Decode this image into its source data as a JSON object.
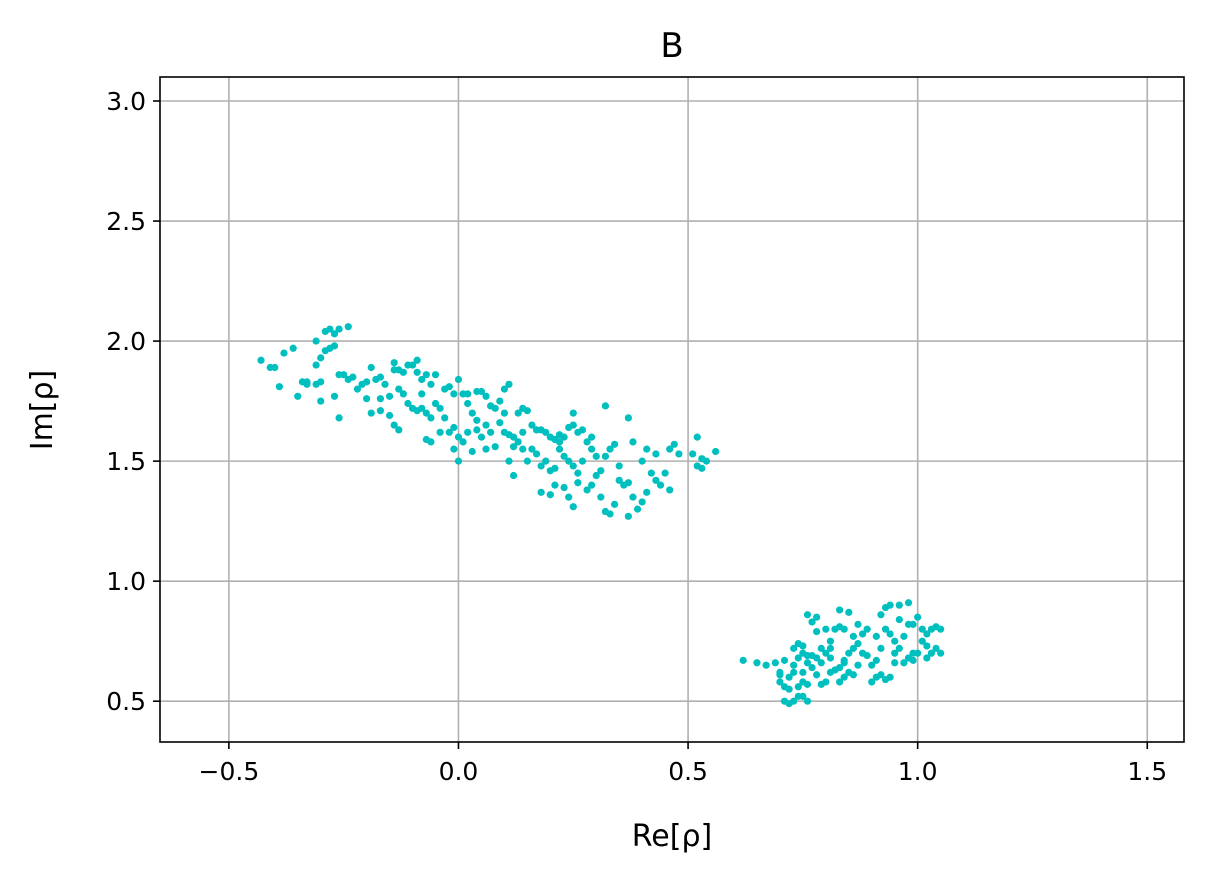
{
  "chart_data": {
    "type": "scatter",
    "title": "B",
    "xlabel": "Re[ρ]",
    "ylabel": "Im[ρ]",
    "xlim": [
      -0.65,
      1.58
    ],
    "ylim": [
      0.33,
      3.1
    ],
    "xticks": [
      -0.5,
      0.0,
      0.5,
      1.0,
      1.5
    ],
    "xtick_labels": [
      "−0.5",
      "0.0",
      "0.5",
      "1.0",
      "1.5"
    ],
    "yticks": [
      0.5,
      1.0,
      1.5,
      2.0,
      2.5,
      3.0
    ],
    "ytick_labels": [
      "0.5",
      "1.0",
      "1.5",
      "2.0",
      "2.5",
      "3.0"
    ],
    "grid": true,
    "marker_color": "#00bfbf",
    "series": [
      {
        "points": [
          [
            -0.43,
            1.92
          ],
          [
            -0.41,
            1.89
          ],
          [
            -0.4,
            1.89
          ],
          [
            -0.38,
            1.95
          ],
          [
            -0.36,
            1.97
          ],
          [
            -0.39,
            1.81
          ],
          [
            -0.35,
            1.77
          ],
          [
            -0.33,
            1.83
          ],
          [
            -0.33,
            1.82
          ],
          [
            -0.31,
            1.82
          ],
          [
            -0.3,
            1.83
          ],
          [
            -0.31,
            1.9
          ],
          [
            -0.3,
            1.93
          ],
          [
            -0.29,
            1.96
          ],
          [
            -0.28,
            1.97
          ],
          [
            -0.27,
            1.98
          ],
          [
            -0.31,
            2.0
          ],
          [
            -0.29,
            2.04
          ],
          [
            -0.28,
            2.05
          ],
          [
            -0.26,
            2.05
          ],
          [
            -0.24,
            2.06
          ],
          [
            -0.27,
            2.03
          ],
          [
            -0.3,
            1.75
          ],
          [
            -0.27,
            1.77
          ],
          [
            -0.26,
            1.68
          ],
          [
            -0.25,
            1.86
          ],
          [
            -0.24,
            1.84
          ],
          [
            -0.23,
            1.85
          ],
          [
            -0.22,
            1.8
          ],
          [
            -0.21,
            1.82
          ],
          [
            -0.2,
            1.83
          ],
          [
            -0.19,
            1.89
          ],
          [
            -0.18,
            1.84
          ],
          [
            -0.17,
            1.85
          ],
          [
            -0.17,
            1.76
          ],
          [
            -0.16,
            1.82
          ],
          [
            -0.15,
            1.77
          ],
          [
            -0.14,
            1.91
          ],
          [
            -0.14,
            1.88
          ],
          [
            -0.13,
            1.88
          ],
          [
            -0.12,
            1.87
          ],
          [
            -0.11,
            1.9
          ],
          [
            -0.1,
            1.9
          ],
          [
            -0.09,
            1.92
          ],
          [
            -0.09,
            1.87
          ],
          [
            -0.08,
            1.84
          ],
          [
            -0.07,
            1.86
          ],
          [
            -0.06,
            1.82
          ],
          [
            -0.13,
            1.8
          ],
          [
            -0.12,
            1.78
          ],
          [
            -0.11,
            1.74
          ],
          [
            -0.1,
            1.72
          ],
          [
            -0.09,
            1.71
          ],
          [
            -0.08,
            1.72
          ],
          [
            -0.07,
            1.7
          ],
          [
            -0.06,
            1.68
          ],
          [
            -0.05,
            1.74
          ],
          [
            -0.04,
            1.72
          ],
          [
            -0.03,
            1.8
          ],
          [
            -0.02,
            1.81
          ],
          [
            -0.01,
            1.78
          ],
          [
            -0.03,
            1.68
          ],
          [
            -0.02,
            1.62
          ],
          [
            -0.01,
            1.64
          ],
          [
            0.0,
            1.6
          ],
          [
            0.01,
            1.58
          ],
          [
            0.02,
            1.62
          ],
          [
            -0.01,
            1.55
          ],
          [
            0.0,
            1.5
          ],
          [
            -0.06,
            1.58
          ],
          [
            -0.07,
            1.59
          ],
          [
            -0.04,
            1.62
          ],
          [
            -0.14,
            1.65
          ],
          [
            -0.13,
            1.63
          ],
          [
            -0.15,
            1.69
          ],
          [
            -0.19,
            1.7
          ],
          [
            -0.17,
            1.71
          ],
          [
            0.0,
            1.84
          ],
          [
            0.01,
            1.78
          ],
          [
            0.02,
            1.74
          ],
          [
            0.03,
            1.7
          ],
          [
            0.04,
            1.79
          ],
          [
            0.05,
            1.79
          ],
          [
            0.06,
            1.77
          ],
          [
            0.04,
            1.67
          ],
          [
            0.05,
            1.6
          ],
          [
            0.06,
            1.65
          ],
          [
            0.07,
            1.62
          ],
          [
            0.07,
            1.73
          ],
          [
            0.08,
            1.72
          ],
          [
            0.09,
            1.75
          ],
          [
            0.1,
            1.8
          ],
          [
            0.11,
            1.82
          ],
          [
            0.1,
            1.7
          ],
          [
            0.09,
            1.66
          ],
          [
            0.1,
            1.62
          ],
          [
            0.11,
            1.61
          ],
          [
            0.12,
            1.6
          ],
          [
            0.13,
            1.7
          ],
          [
            0.14,
            1.72
          ],
          [
            0.15,
            1.71
          ],
          [
            0.16,
            1.65
          ],
          [
            0.12,
            1.56
          ],
          [
            0.13,
            1.58
          ],
          [
            0.14,
            1.55
          ],
          [
            0.15,
            1.5
          ],
          [
            0.11,
            1.5
          ],
          [
            0.12,
            1.44
          ],
          [
            0.08,
            1.56
          ],
          [
            0.06,
            1.55
          ],
          [
            0.03,
            1.54
          ],
          [
            0.17,
            1.63
          ],
          [
            0.18,
            1.63
          ],
          [
            0.19,
            1.62
          ],
          [
            0.2,
            1.6
          ],
          [
            0.21,
            1.59
          ],
          [
            0.22,
            1.61
          ],
          [
            0.23,
            1.6
          ],
          [
            0.24,
            1.64
          ],
          [
            0.25,
            1.7
          ],
          [
            0.25,
            1.65
          ],
          [
            0.26,
            1.62
          ],
          [
            0.27,
            1.63
          ],
          [
            0.28,
            1.58
          ],
          [
            0.29,
            1.6
          ],
          [
            0.17,
            1.53
          ],
          [
            0.18,
            1.48
          ],
          [
            0.19,
            1.5
          ],
          [
            0.2,
            1.46
          ],
          [
            0.21,
            1.47
          ],
          [
            0.22,
            1.55
          ],
          [
            0.23,
            1.52
          ],
          [
            0.24,
            1.5
          ],
          [
            0.25,
            1.48
          ],
          [
            0.26,
            1.45
          ],
          [
            0.18,
            1.37
          ],
          [
            0.2,
            1.36
          ],
          [
            0.21,
            1.4
          ],
          [
            0.23,
            1.39
          ],
          [
            0.24,
            1.35
          ],
          [
            0.25,
            1.31
          ],
          [
            0.26,
            1.41
          ],
          [
            0.28,
            1.38
          ],
          [
            0.29,
            1.4
          ],
          [
            0.3,
            1.44
          ],
          [
            0.31,
            1.46
          ],
          [
            0.32,
            1.52
          ],
          [
            0.33,
            1.55
          ],
          [
            0.34,
            1.57
          ],
          [
            0.32,
            1.73
          ],
          [
            0.37,
            1.68
          ],
          [
            0.31,
            1.35
          ],
          [
            0.32,
            1.29
          ],
          [
            0.33,
            1.28
          ],
          [
            0.34,
            1.32
          ],
          [
            0.35,
            1.42
          ],
          [
            0.36,
            1.4
          ],
          [
            0.37,
            1.41
          ],
          [
            0.37,
            1.27
          ],
          [
            0.38,
            1.35
          ],
          [
            0.39,
            1.3
          ],
          [
            0.4,
            1.33
          ],
          [
            0.41,
            1.37
          ],
          [
            0.42,
            1.45
          ],
          [
            0.43,
            1.42
          ],
          [
            0.44,
            1.4
          ],
          [
            0.45,
            1.45
          ],
          [
            0.4,
            1.5
          ],
          [
            0.38,
            1.58
          ],
          [
            0.41,
            1.55
          ],
          [
            0.43,
            1.53
          ],
          [
            0.46,
            1.55
          ],
          [
            0.47,
            1.57
          ],
          [
            0.48,
            1.53
          ],
          [
            0.51,
            1.53
          ],
          [
            0.52,
            1.48
          ],
          [
            0.53,
            1.47
          ],
          [
            0.53,
            1.51
          ],
          [
            0.54,
            1.5
          ],
          [
            0.56,
            1.54
          ],
          [
            0.52,
            1.6
          ],
          [
            0.46,
            1.38
          ],
          [
            0.35,
            1.48
          ],
          [
            0.3,
            1.52
          ],
          [
            0.29,
            1.55
          ],
          [
            0.27,
            1.5
          ],
          [
            0.22,
            1.58
          ],
          [
            0.16,
            1.55
          ],
          [
            0.02,
            1.78
          ],
          [
            -0.05,
            1.86
          ],
          [
            -0.08,
            1.78
          ],
          [
            -0.2,
            1.76
          ],
          [
            -0.26,
            1.86
          ],
          [
            -0.34,
            1.83
          ],
          [
            0.04,
            1.63
          ],
          [
            0.14,
            1.62
          ]
        ]
      },
      {
        "points": [
          [
            0.62,
            0.67
          ],
          [
            0.65,
            0.66
          ],
          [
            0.67,
            0.65
          ],
          [
            0.69,
            0.66
          ],
          [
            0.71,
            0.67
          ],
          [
            0.7,
            0.62
          ],
          [
            0.7,
            0.58
          ],
          [
            0.71,
            0.56
          ],
          [
            0.72,
            0.6
          ],
          [
            0.73,
            0.62
          ],
          [
            0.72,
            0.55
          ],
          [
            0.71,
            0.5
          ],
          [
            0.72,
            0.49
          ],
          [
            0.73,
            0.5
          ],
          [
            0.74,
            0.52
          ],
          [
            0.75,
            0.52
          ],
          [
            0.76,
            0.5
          ],
          [
            0.74,
            0.56
          ],
          [
            0.75,
            0.58
          ],
          [
            0.76,
            0.57
          ],
          [
            0.73,
            0.65
          ],
          [
            0.74,
            0.68
          ],
          [
            0.75,
            0.7
          ],
          [
            0.76,
            0.66
          ],
          [
            0.77,
            0.64
          ],
          [
            0.73,
            0.72
          ],
          [
            0.74,
            0.74
          ],
          [
            0.75,
            0.73
          ],
          [
            0.76,
            0.69
          ],
          [
            0.77,
            0.69
          ],
          [
            0.78,
            0.68
          ],
          [
            0.79,
            0.66
          ],
          [
            0.8,
            0.7
          ],
          [
            0.81,
            0.68
          ],
          [
            0.76,
            0.86
          ],
          [
            0.78,
            0.85
          ],
          [
            0.8,
            0.8
          ],
          [
            0.81,
            0.75
          ],
          [
            0.82,
            0.8
          ],
          [
            0.83,
            0.81
          ],
          [
            0.84,
            0.8
          ],
          [
            0.83,
            0.88
          ],
          [
            0.85,
            0.87
          ],
          [
            0.86,
            0.77
          ],
          [
            0.87,
            0.74
          ],
          [
            0.86,
            0.72
          ],
          [
            0.85,
            0.7
          ],
          [
            0.84,
            0.66
          ],
          [
            0.83,
            0.64
          ],
          [
            0.82,
            0.63
          ],
          [
            0.81,
            0.62
          ],
          [
            0.8,
            0.58
          ],
          [
            0.79,
            0.57
          ],
          [
            0.83,
            0.58
          ],
          [
            0.84,
            0.6
          ],
          [
            0.85,
            0.62
          ],
          [
            0.86,
            0.61
          ],
          [
            0.87,
            0.65
          ],
          [
            0.88,
            0.7
          ],
          [
            0.89,
            0.69
          ],
          [
            0.9,
            0.65
          ],
          [
            0.91,
            0.67
          ],
          [
            0.9,
            0.58
          ],
          [
            0.91,
            0.6
          ],
          [
            0.92,
            0.61
          ],
          [
            0.93,
            0.59
          ],
          [
            0.94,
            0.6
          ],
          [
            0.95,
            0.66
          ],
          [
            0.95,
            0.7
          ],
          [
            0.96,
            0.72
          ],
          [
            0.97,
            0.66
          ],
          [
            0.98,
            0.68
          ],
          [
            0.99,
            0.7
          ],
          [
            1.0,
            0.7
          ],
          [
            1.01,
            0.75
          ],
          [
            1.02,
            0.73
          ],
          [
            1.03,
            0.7
          ],
          [
            1.04,
            0.72
          ],
          [
            1.05,
            0.7
          ],
          [
            1.05,
            0.8
          ],
          [
            1.04,
            0.81
          ],
          [
            1.03,
            0.8
          ],
          [
            1.02,
            0.78
          ],
          [
            1.01,
            0.8
          ],
          [
            1.0,
            0.85
          ],
          [
            0.98,
            0.91
          ],
          [
            0.96,
            0.9
          ],
          [
            0.94,
            0.9
          ],
          [
            0.93,
            0.89
          ],
          [
            0.92,
            0.86
          ],
          [
            0.93,
            0.8
          ],
          [
            0.94,
            0.78
          ],
          [
            0.95,
            0.75
          ],
          [
            0.97,
            0.77
          ],
          [
            0.98,
            0.82
          ],
          [
            0.99,
            0.82
          ],
          [
            0.96,
            0.84
          ],
          [
            0.88,
            0.78
          ],
          [
            0.89,
            0.8
          ],
          [
            0.91,
            0.77
          ],
          [
            0.87,
            0.82
          ],
          [
            0.79,
            0.72
          ],
          [
            0.78,
            0.79
          ],
          [
            0.77,
            0.83
          ],
          [
            0.7,
            0.61
          ],
          [
            0.78,
            0.61
          ],
          [
            0.81,
            0.72
          ],
          [
            0.84,
            0.67
          ],
          [
            0.92,
            0.72
          ],
          [
            1.02,
            0.68
          ],
          [
            0.99,
            0.67
          ],
          [
            0.75,
            0.62
          ]
        ]
      }
    ]
  }
}
